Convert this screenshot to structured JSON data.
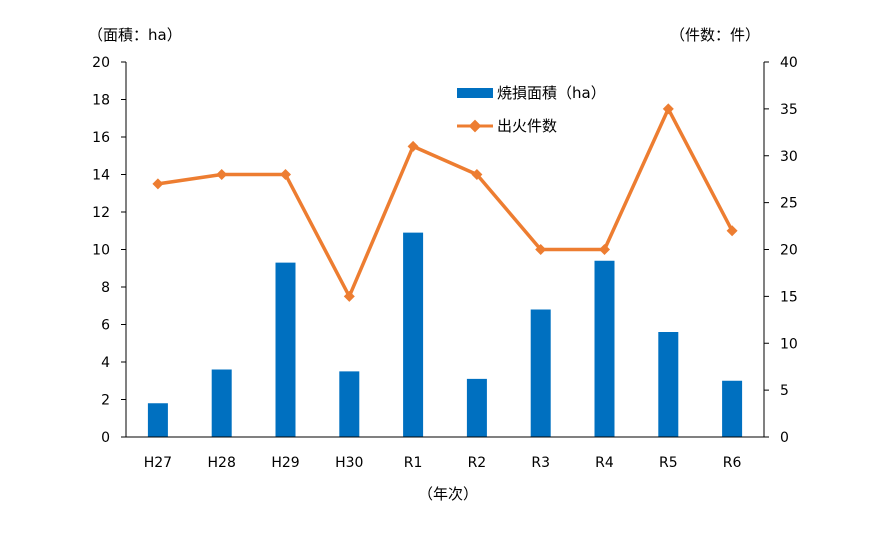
{
  "chart_data": {
    "type": "bar+line",
    "categories": [
      "H27",
      "H28",
      "H29",
      "H30",
      "R1",
      "R2",
      "R3",
      "R4",
      "R5",
      "R6"
    ],
    "series": [
      {
        "name": "焼損面積（ha）",
        "type": "bar",
        "axis": "left",
        "color": "#0070C0",
        "values": [
          1.8,
          3.6,
          9.3,
          3.5,
          10.9,
          3.1,
          6.8,
          9.4,
          5.6,
          3.0
        ]
      },
      {
        "name": "出火件数",
        "type": "line",
        "axis": "right",
        "color": "#ED7D31",
        "marker": "diamond",
        "values": [
          27,
          28,
          28,
          15,
          31,
          28,
          20,
          20,
          35,
          22
        ]
      }
    ],
    "left_axis": {
      "unit_label": "（面積：ha）",
      "ylim": [
        0,
        20
      ],
      "ticks": [
        "0",
        "2",
        "4",
        "6",
        "8",
        "10",
        "12",
        "14",
        "16",
        "18",
        "20"
      ]
    },
    "right_axis": {
      "unit_label": "（件数：件）",
      "ylim": [
        0,
        40
      ],
      "ticks": [
        "0",
        "5",
        "10",
        "15",
        "20",
        "25",
        "30",
        "35",
        "40"
      ]
    },
    "xlabel": "（年次）",
    "grid": false,
    "legend_position": "top-center"
  }
}
